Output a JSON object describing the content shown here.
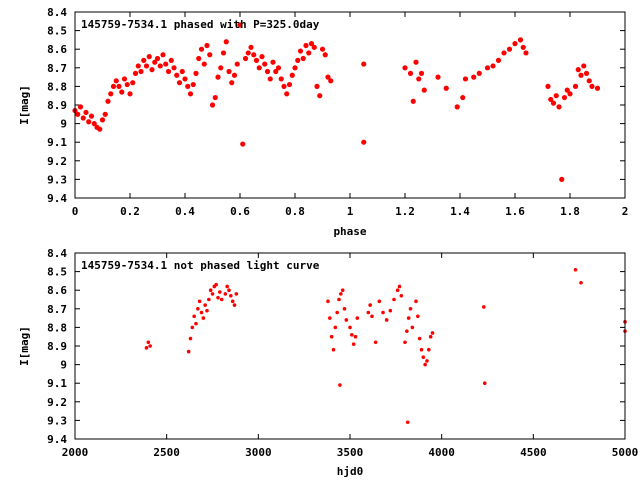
{
  "chart_data": [
    {
      "type": "scatter",
      "title": "145759-7534.1 phased with P=325.0day",
      "xlabel": "phase",
      "ylabel": "I[mag]",
      "xlim": [
        0,
        2
      ],
      "ylim": [
        8.4,
        9.4
      ],
      "y_reversed": true,
      "xticks": [
        0,
        0.2,
        0.4,
        0.6,
        0.8,
        1,
        1.2,
        1.4,
        1.6,
        1.8,
        2
      ],
      "xtick_labels": [
        "0",
        "0.2",
        "0.4",
        "0.6",
        "0.8",
        "1",
        "1.2",
        "1.4",
        "1.6",
        "1.8",
        "2"
      ],
      "yticks": [
        8.4,
        8.5,
        8.6,
        8.7,
        8.8,
        8.9,
        9,
        9.1,
        9.2,
        9.3,
        9.4
      ],
      "ytick_labels": [
        "8.4",
        "8.5",
        "8.6",
        "8.7",
        "8.8",
        "8.9",
        "9",
        "9.1",
        "9.2",
        "9.3",
        "9.4"
      ],
      "marker_color": "#ff0000",
      "points": [
        [
          0.0,
          8.93
        ],
        [
          0.01,
          8.95
        ],
        [
          0.02,
          8.91
        ],
        [
          0.03,
          8.97
        ],
        [
          0.04,
          8.94
        ],
        [
          0.05,
          8.99
        ],
        [
          0.06,
          8.96
        ],
        [
          0.07,
          9.0
        ],
        [
          0.08,
          9.02
        ],
        [
          0.09,
          9.03
        ],
        [
          0.1,
          8.98
        ],
        [
          0.11,
          8.95
        ],
        [
          0.12,
          8.88
        ],
        [
          0.13,
          8.84
        ],
        [
          0.14,
          8.8
        ],
        [
          0.15,
          8.77
        ],
        [
          0.16,
          8.8
        ],
        [
          0.17,
          8.83
        ],
        [
          0.18,
          8.76
        ],
        [
          0.19,
          8.79
        ],
        [
          0.2,
          8.84
        ],
        [
          0.21,
          8.78
        ],
        [
          0.22,
          8.73
        ],
        [
          0.23,
          8.69
        ],
        [
          0.24,
          8.72
        ],
        [
          0.25,
          8.66
        ],
        [
          0.26,
          8.69
        ],
        [
          0.27,
          8.64
        ],
        [
          0.28,
          8.71
        ],
        [
          0.29,
          8.67
        ],
        [
          0.3,
          8.65
        ],
        [
          0.31,
          8.69
        ],
        [
          0.32,
          8.63
        ],
        [
          0.33,
          8.68
        ],
        [
          0.34,
          8.72
        ],
        [
          0.35,
          8.66
        ],
        [
          0.36,
          8.7
        ],
        [
          0.37,
          8.74
        ],
        [
          0.38,
          8.78
        ],
        [
          0.39,
          8.72
        ],
        [
          0.4,
          8.76
        ],
        [
          0.41,
          8.8
        ],
        [
          0.42,
          8.84
        ],
        [
          0.43,
          8.79
        ],
        [
          0.44,
          8.73
        ],
        [
          0.45,
          8.65
        ],
        [
          0.46,
          8.6
        ],
        [
          0.47,
          8.68
        ],
        [
          0.48,
          8.58
        ],
        [
          0.49,
          8.63
        ],
        [
          0.5,
          8.9
        ],
        [
          0.51,
          8.86
        ],
        [
          0.52,
          8.75
        ],
        [
          0.53,
          8.7
        ],
        [
          0.54,
          8.62
        ],
        [
          0.55,
          8.56
        ],
        [
          0.56,
          8.72
        ],
        [
          0.57,
          8.78
        ],
        [
          0.58,
          8.74
        ],
        [
          0.59,
          8.68
        ],
        [
          0.6,
          8.47
        ],
        [
          0.61,
          9.11
        ],
        [
          0.62,
          8.65
        ],
        [
          0.63,
          8.62
        ],
        [
          0.64,
          8.59
        ],
        [
          0.65,
          8.63
        ],
        [
          0.66,
          8.66
        ],
        [
          0.67,
          8.7
        ],
        [
          0.68,
          8.64
        ],
        [
          0.69,
          8.68
        ],
        [
          0.7,
          8.72
        ],
        [
          0.71,
          8.76
        ],
        [
          0.72,
          8.67
        ],
        [
          0.73,
          8.72
        ],
        [
          0.74,
          8.7
        ],
        [
          0.75,
          8.76
        ],
        [
          0.76,
          8.8
        ],
        [
          0.77,
          8.84
        ],
        [
          0.78,
          8.79
        ],
        [
          0.79,
          8.74
        ],
        [
          0.8,
          8.7
        ],
        [
          0.81,
          8.66
        ],
        [
          0.82,
          8.61
        ],
        [
          0.83,
          8.65
        ],
        [
          0.84,
          8.58
        ],
        [
          0.85,
          8.62
        ],
        [
          0.86,
          8.57
        ],
        [
          0.87,
          8.59
        ],
        [
          0.88,
          8.8
        ],
        [
          0.89,
          8.85
        ],
        [
          0.9,
          8.6
        ],
        [
          0.91,
          8.63
        ],
        [
          0.92,
          8.75
        ],
        [
          0.93,
          8.77
        ],
        [
          1.05,
          8.68
        ],
        [
          1.05,
          9.1
        ],
        [
          1.2,
          8.7
        ],
        [
          1.22,
          8.73
        ],
        [
          1.23,
          8.88
        ],
        [
          1.24,
          8.67
        ],
        [
          1.25,
          8.76
        ],
        [
          1.26,
          8.73
        ],
        [
          1.27,
          8.82
        ],
        [
          1.32,
          8.75
        ],
        [
          1.35,
          8.81
        ],
        [
          1.39,
          8.91
        ],
        [
          1.41,
          8.86
        ],
        [
          1.42,
          8.76
        ],
        [
          1.45,
          8.75
        ],
        [
          1.47,
          8.73
        ],
        [
          1.5,
          8.7
        ],
        [
          1.52,
          8.69
        ],
        [
          1.54,
          8.66
        ],
        [
          1.56,
          8.62
        ],
        [
          1.58,
          8.6
        ],
        [
          1.6,
          8.57
        ],
        [
          1.62,
          8.55
        ],
        [
          1.63,
          8.59
        ],
        [
          1.64,
          8.62
        ],
        [
          1.72,
          8.8
        ],
        [
          1.73,
          8.87
        ],
        [
          1.74,
          8.89
        ],
        [
          1.75,
          8.85
        ],
        [
          1.76,
          8.91
        ],
        [
          1.77,
          9.3
        ],
        [
          1.78,
          8.86
        ],
        [
          1.79,
          8.82
        ],
        [
          1.8,
          8.84
        ],
        [
          1.82,
          8.8
        ],
        [
          1.83,
          8.71
        ],
        [
          1.84,
          8.74
        ],
        [
          1.85,
          8.69
        ],
        [
          1.86,
          8.73
        ],
        [
          1.87,
          8.77
        ],
        [
          1.88,
          8.8
        ],
        [
          1.9,
          8.81
        ]
      ]
    },
    {
      "type": "scatter",
      "title": "145759-7534.1 not phased light curve",
      "xlabel": "hjd0",
      "ylabel": "I[mag]",
      "xlim": [
        2000,
        5000
      ],
      "ylim": [
        8.4,
        9.4
      ],
      "y_reversed": true,
      "xticks": [
        2000,
        2500,
        3000,
        3500,
        4000,
        4500,
        5000
      ],
      "xtick_labels": [
        "2000",
        "2500",
        "3000",
        "3500",
        "4000",
        "4500",
        "5000"
      ],
      "yticks": [
        8.4,
        8.5,
        8.6,
        8.7,
        8.8,
        8.9,
        9,
        9.1,
        9.2,
        9.3,
        9.4
      ],
      "ytick_labels": [
        "8.4",
        "8.5",
        "8.6",
        "8.7",
        "8.8",
        "8.9",
        "9",
        "9.1",
        "9.2",
        "9.3",
        "9.4"
      ],
      "marker_color": "#ff0000",
      "points": [
        [
          2390,
          8.91
        ],
        [
          2400,
          8.88
        ],
        [
          2410,
          8.9
        ],
        [
          2620,
          8.93
        ],
        [
          2630,
          8.86
        ],
        [
          2640,
          8.8
        ],
        [
          2650,
          8.74
        ],
        [
          2660,
          8.78
        ],
        [
          2670,
          8.7
        ],
        [
          2680,
          8.66
        ],
        [
          2690,
          8.72
        ],
        [
          2700,
          8.75
        ],
        [
          2710,
          8.68
        ],
        [
          2720,
          8.71
        ],
        [
          2730,
          8.65
        ],
        [
          2740,
          8.6
        ],
        [
          2750,
          8.62
        ],
        [
          2760,
          8.58
        ],
        [
          2770,
          8.57
        ],
        [
          2780,
          8.64
        ],
        [
          2790,
          8.61
        ],
        [
          2800,
          8.65
        ],
        [
          2820,
          8.62
        ],
        [
          2830,
          8.58
        ],
        [
          2840,
          8.6
        ],
        [
          2850,
          8.63
        ],
        [
          2860,
          8.66
        ],
        [
          2870,
          8.68
        ],
        [
          2880,
          8.62
        ],
        [
          3380,
          8.66
        ],
        [
          3390,
          8.75
        ],
        [
          3400,
          8.85
        ],
        [
          3410,
          8.92
        ],
        [
          3420,
          8.8
        ],
        [
          3430,
          8.72
        ],
        [
          3440,
          8.65
        ],
        [
          3445,
          9.11
        ],
        [
          3450,
          8.62
        ],
        [
          3460,
          8.6
        ],
        [
          3470,
          8.7
        ],
        [
          3480,
          8.76
        ],
        [
          3500,
          8.8
        ],
        [
          3510,
          8.84
        ],
        [
          3520,
          8.89
        ],
        [
          3530,
          8.85
        ],
        [
          3540,
          8.75
        ],
        [
          3600,
          8.72
        ],
        [
          3610,
          8.68
        ],
        [
          3620,
          8.74
        ],
        [
          3640,
          8.88
        ],
        [
          3660,
          8.66
        ],
        [
          3680,
          8.72
        ],
        [
          3700,
          8.76
        ],
        [
          3720,
          8.71
        ],
        [
          3740,
          8.65
        ],
        [
          3760,
          8.6
        ],
        [
          3770,
          8.58
        ],
        [
          3780,
          8.63
        ],
        [
          3800,
          8.88
        ],
        [
          3810,
          8.82
        ],
        [
          3815,
          9.31
        ],
        [
          3820,
          8.75
        ],
        [
          3830,
          8.7
        ],
        [
          3840,
          8.8
        ],
        [
          3860,
          8.66
        ],
        [
          3870,
          8.74
        ],
        [
          3880,
          8.86
        ],
        [
          3890,
          8.92
        ],
        [
          3900,
          8.96
        ],
        [
          3910,
          9.0
        ],
        [
          3920,
          8.98
        ],
        [
          3930,
          8.92
        ],
        [
          3940,
          8.85
        ],
        [
          3950,
          8.83
        ],
        [
          4230,
          8.69
        ],
        [
          4235,
          9.1
        ],
        [
          4730,
          8.49
        ],
        [
          4760,
          8.56
        ],
        [
          5000,
          8.77
        ],
        [
          5000,
          8.82
        ]
      ]
    }
  ]
}
